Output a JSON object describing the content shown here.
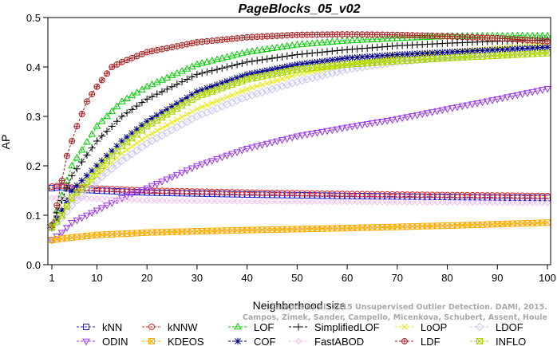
{
  "chart_data": {
    "type": "line",
    "title": "PageBlocks_05_v02",
    "xlabel": "Neighborhood size",
    "ylabel": "AP",
    "xlim": [
      1,
      100
    ],
    "ylim": [
      0,
      0.5
    ],
    "x_ticks": [
      1,
      10,
      20,
      30,
      40,
      50,
      60,
      70,
      80,
      90,
      100
    ],
    "y_ticks": [
      0.0,
      0.1,
      0.2,
      0.3,
      0.4,
      0.5
    ],
    "x_tick_labels": [
      "1",
      "10",
      "20",
      "30",
      "40",
      "50",
      "60",
      "70",
      "80",
      "90",
      "100"
    ],
    "y_tick_labels": [
      "0.0",
      "0.1",
      "0.2",
      "0.3",
      "0.4",
      "0.5"
    ],
    "grid": false,
    "legend_position": "bottom",
    "credit_lines": [
      "Campos et al. 2015 Unsupervised Outlier Detection. DAMI, 2015.",
      "Campos, Zimek, Sander, Campello, Micenkova, Schubert, Assent, Houle"
    ],
    "series": [
      {
        "name": "kNN",
        "color": "#2222cc",
        "marker": "square",
        "anchors": [
          [
            1,
            0.155
          ],
          [
            3,
            0.157
          ],
          [
            5,
            0.153
          ],
          [
            10,
            0.15
          ],
          [
            20,
            0.146
          ],
          [
            40,
            0.142
          ],
          [
            60,
            0.139
          ],
          [
            80,
            0.137
          ],
          [
            100,
            0.135
          ]
        ]
      },
      {
        "name": "kNNW",
        "color": "#dd2222",
        "marker": "circle",
        "anchors": [
          [
            1,
            0.158
          ],
          [
            3,
            0.16
          ],
          [
            5,
            0.156
          ],
          [
            10,
            0.154
          ],
          [
            20,
            0.15
          ],
          [
            40,
            0.146
          ],
          [
            60,
            0.143
          ],
          [
            80,
            0.141
          ],
          [
            100,
            0.139
          ]
        ]
      },
      {
        "name": "LOF",
        "color": "#00cc00",
        "marker": "triangle",
        "anchors": [
          [
            1,
            0.08
          ],
          [
            3,
            0.14
          ],
          [
            5,
            0.2
          ],
          [
            10,
            0.28
          ],
          [
            15,
            0.33
          ],
          [
            20,
            0.36
          ],
          [
            30,
            0.405
          ],
          [
            40,
            0.43
          ],
          [
            50,
            0.445
          ],
          [
            60,
            0.453
          ],
          [
            70,
            0.458
          ],
          [
            80,
            0.462
          ],
          [
            90,
            0.463
          ],
          [
            100,
            0.463
          ]
        ]
      },
      {
        "name": "SimplifiedLOF",
        "color": "#000000",
        "marker": "plus",
        "anchors": [
          [
            1,
            0.08
          ],
          [
            3,
            0.13
          ],
          [
            5,
            0.18
          ],
          [
            10,
            0.25
          ],
          [
            15,
            0.3
          ],
          [
            20,
            0.335
          ],
          [
            30,
            0.385
          ],
          [
            40,
            0.41
          ],
          [
            50,
            0.425
          ],
          [
            60,
            0.435
          ],
          [
            70,
            0.443
          ],
          [
            80,
            0.448
          ],
          [
            90,
            0.452
          ],
          [
            100,
            0.455
          ]
        ]
      },
      {
        "name": "LoOP",
        "color": "#e8e800",
        "marker": "x",
        "anchors": [
          [
            1,
            0.075
          ],
          [
            3,
            0.1
          ],
          [
            5,
            0.13
          ],
          [
            10,
            0.18
          ],
          [
            15,
            0.225
          ],
          [
            20,
            0.26
          ],
          [
            30,
            0.315
          ],
          [
            40,
            0.355
          ],
          [
            50,
            0.385
          ],
          [
            60,
            0.405
          ],
          [
            70,
            0.42
          ],
          [
            80,
            0.43
          ],
          [
            90,
            0.438
          ],
          [
            100,
            0.445
          ]
        ]
      },
      {
        "name": "LDOF",
        "color": "#c4c4f4",
        "marker": "diamond",
        "anchors": [
          [
            1,
            0.075
          ],
          [
            3,
            0.095
          ],
          [
            5,
            0.12
          ],
          [
            10,
            0.17
          ],
          [
            15,
            0.21
          ],
          [
            20,
            0.245
          ],
          [
            30,
            0.3
          ],
          [
            40,
            0.34
          ],
          [
            50,
            0.37
          ],
          [
            60,
            0.395
          ],
          [
            70,
            0.41
          ],
          [
            80,
            0.42
          ],
          [
            90,
            0.43
          ],
          [
            100,
            0.437
          ]
        ]
      },
      {
        "name": "ODIN",
        "color": "#9933ee",
        "marker": "triangle-down",
        "anchors": [
          [
            1,
            0.05
          ],
          [
            3,
            0.065
          ],
          [
            5,
            0.085
          ],
          [
            10,
            0.11
          ],
          [
            15,
            0.135
          ],
          [
            20,
            0.155
          ],
          [
            30,
            0.2
          ],
          [
            40,
            0.235
          ],
          [
            50,
            0.26
          ],
          [
            60,
            0.278
          ],
          [
            70,
            0.295
          ],
          [
            80,
            0.315
          ],
          [
            90,
            0.335
          ],
          [
            100,
            0.356
          ]
        ]
      },
      {
        "name": "KDEOS",
        "color": "#ffaa00",
        "marker": "boxx",
        "anchors": [
          [
            1,
            0.05
          ],
          [
            5,
            0.055
          ],
          [
            10,
            0.06
          ],
          [
            20,
            0.065
          ],
          [
            40,
            0.07
          ],
          [
            60,
            0.074
          ],
          [
            80,
            0.079
          ],
          [
            100,
            0.085
          ]
        ]
      },
      {
        "name": "COF",
        "color": "#000088",
        "marker": "star",
        "anchors": [
          [
            1,
            0.075
          ],
          [
            3,
            0.11
          ],
          [
            5,
            0.15
          ],
          [
            10,
            0.2
          ],
          [
            15,
            0.25
          ],
          [
            20,
            0.29
          ],
          [
            30,
            0.35
          ],
          [
            40,
            0.385
          ],
          [
            50,
            0.405
          ],
          [
            60,
            0.418
          ],
          [
            70,
            0.425
          ],
          [
            80,
            0.43
          ],
          [
            90,
            0.435
          ],
          [
            100,
            0.44
          ]
        ]
      },
      {
        "name": "FastABOD",
        "color": "#f0c0f0",
        "marker": "diamond-small",
        "anchors": [
          [
            1,
            0.135
          ],
          [
            5,
            0.135
          ],
          [
            10,
            0.133
          ],
          [
            20,
            0.13
          ],
          [
            40,
            0.128
          ],
          [
            60,
            0.127
          ],
          [
            80,
            0.126
          ],
          [
            100,
            0.125
          ]
        ]
      },
      {
        "name": "LDF",
        "color": "#aa2222",
        "marker": "circle-plus",
        "anchors": [
          [
            1,
            0.08
          ],
          [
            2,
            0.12
          ],
          [
            3,
            0.17
          ],
          [
            4,
            0.22
          ],
          [
            6,
            0.28
          ],
          [
            8,
            0.33
          ],
          [
            10,
            0.36
          ],
          [
            13,
            0.4
          ],
          [
            15,
            0.41
          ],
          [
            20,
            0.43
          ],
          [
            30,
            0.45
          ],
          [
            40,
            0.46
          ],
          [
            50,
            0.465
          ],
          [
            60,
            0.466
          ],
          [
            70,
            0.465
          ],
          [
            80,
            0.462
          ],
          [
            90,
            0.458
          ],
          [
            100,
            0.452
          ]
        ]
      },
      {
        "name": "INFLO",
        "color": "#aad400",
        "marker": "hourglass",
        "anchors": [
          [
            1,
            0.075
          ],
          [
            3,
            0.1
          ],
          [
            5,
            0.135
          ],
          [
            10,
            0.19
          ],
          [
            15,
            0.24
          ],
          [
            20,
            0.28
          ],
          [
            30,
            0.34
          ],
          [
            40,
            0.375
          ],
          [
            50,
            0.395
          ],
          [
            60,
            0.405
          ],
          [
            70,
            0.412
          ],
          [
            80,
            0.418
          ],
          [
            90,
            0.423
          ],
          [
            100,
            0.428
          ]
        ]
      }
    ]
  }
}
